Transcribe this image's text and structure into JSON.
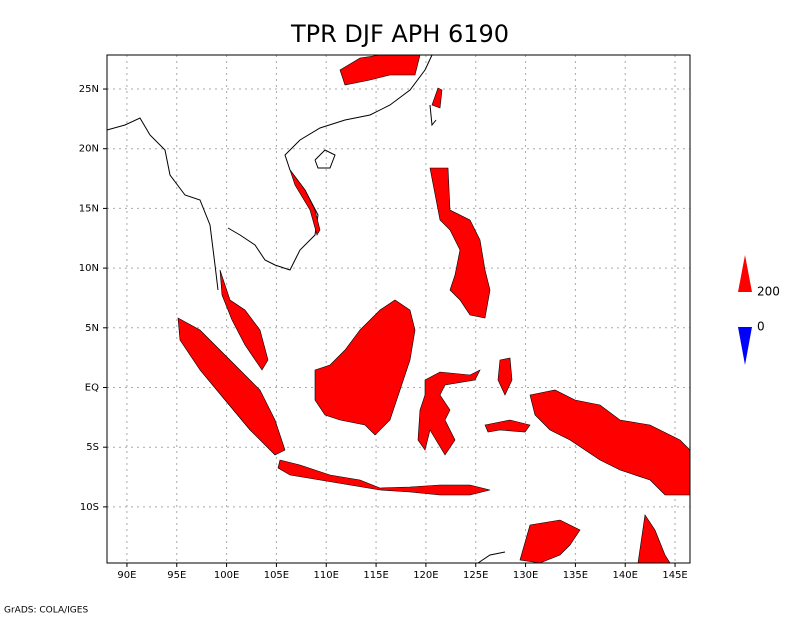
{
  "title": "TPR DJF APH 6190",
  "map": {
    "xlim": [
      88,
      146.5
    ],
    "ylim": [
      -14.7,
      27.85
    ],
    "xticks": [
      {
        "value": 90,
        "label": "90E"
      },
      {
        "value": 95,
        "label": "95E"
      },
      {
        "value": 100,
        "label": "100E"
      },
      {
        "value": 105,
        "label": "105E"
      },
      {
        "value": 110,
        "label": "110E"
      },
      {
        "value": 115,
        "label": "115E"
      },
      {
        "value": 120,
        "label": "120E"
      },
      {
        "value": 125,
        "label": "125E"
      },
      {
        "value": 130,
        "label": "130E"
      },
      {
        "value": 135,
        "label": "135E"
      },
      {
        "value": 140,
        "label": "140E"
      },
      {
        "value": 145,
        "label": "145E"
      }
    ],
    "yticks": [
      {
        "value": 25,
        "label": "25N"
      },
      {
        "value": 20,
        "label": "20N"
      },
      {
        "value": 15,
        "label": "15N"
      },
      {
        "value": 10,
        "label": "10N"
      },
      {
        "value": 5,
        "label": "5N"
      },
      {
        "value": 0,
        "label": "EQ"
      },
      {
        "value": -5,
        "label": "5S"
      },
      {
        "value": -10,
        "label": "10S"
      }
    ],
    "grid": true,
    "fill_color": "#ff0000"
  },
  "colorbar": {
    "levels": [
      200,
      0
    ],
    "colors": [
      "#ff0000",
      "#0000ff"
    ]
  },
  "footer": "GrADS: COLA/IGES"
}
